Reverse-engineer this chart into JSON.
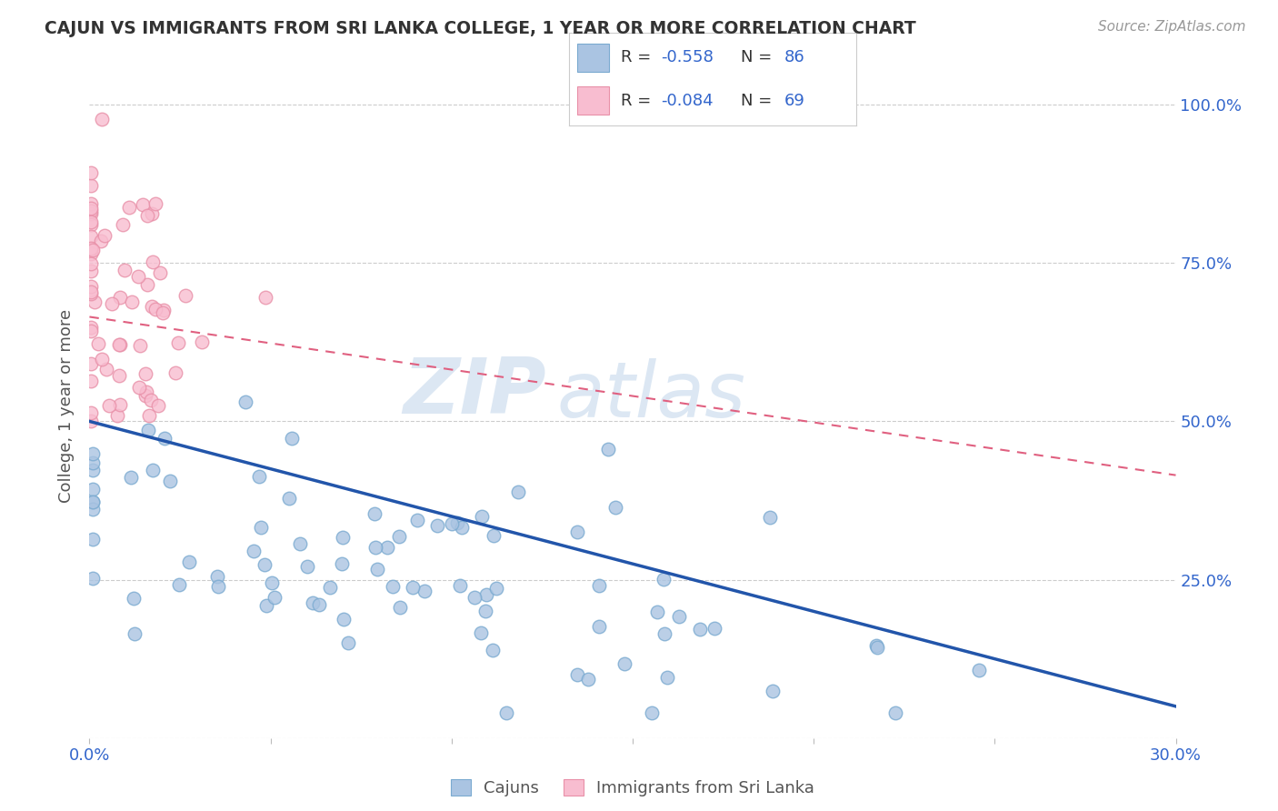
{
  "title": "CAJUN VS IMMIGRANTS FROM SRI LANKA COLLEGE, 1 YEAR OR MORE CORRELATION CHART",
  "source": "Source: ZipAtlas.com",
  "ylabel": "College, 1 year or more",
  "xlim": [
    0.0,
    0.3
  ],
  "ylim": [
    0.0,
    1.05
  ],
  "cajun_R": -0.558,
  "cajun_N": 86,
  "srilanka_R": -0.084,
  "srilanka_N": 69,
  "cajun_color": "#aac4e2",
  "cajun_edge_color": "#7aaad0",
  "cajun_line_color": "#2255aa",
  "srilanka_color": "#f8bdd0",
  "srilanka_edge_color": "#e890a8",
  "srilanka_line_color": "#e06080",
  "watermark_zip": "ZIP",
  "watermark_atlas": "atlas",
  "background_color": "#ffffff",
  "grid_color": "#cccccc",
  "cajun_line_x0": 0.0,
  "cajun_line_y0": 0.5,
  "cajun_line_x1": 0.3,
  "cajun_line_y1": 0.05,
  "srilanka_line_x0": 0.0,
  "srilanka_line_y0": 0.665,
  "srilanka_line_x1": 0.3,
  "srilanka_line_y1": 0.415
}
